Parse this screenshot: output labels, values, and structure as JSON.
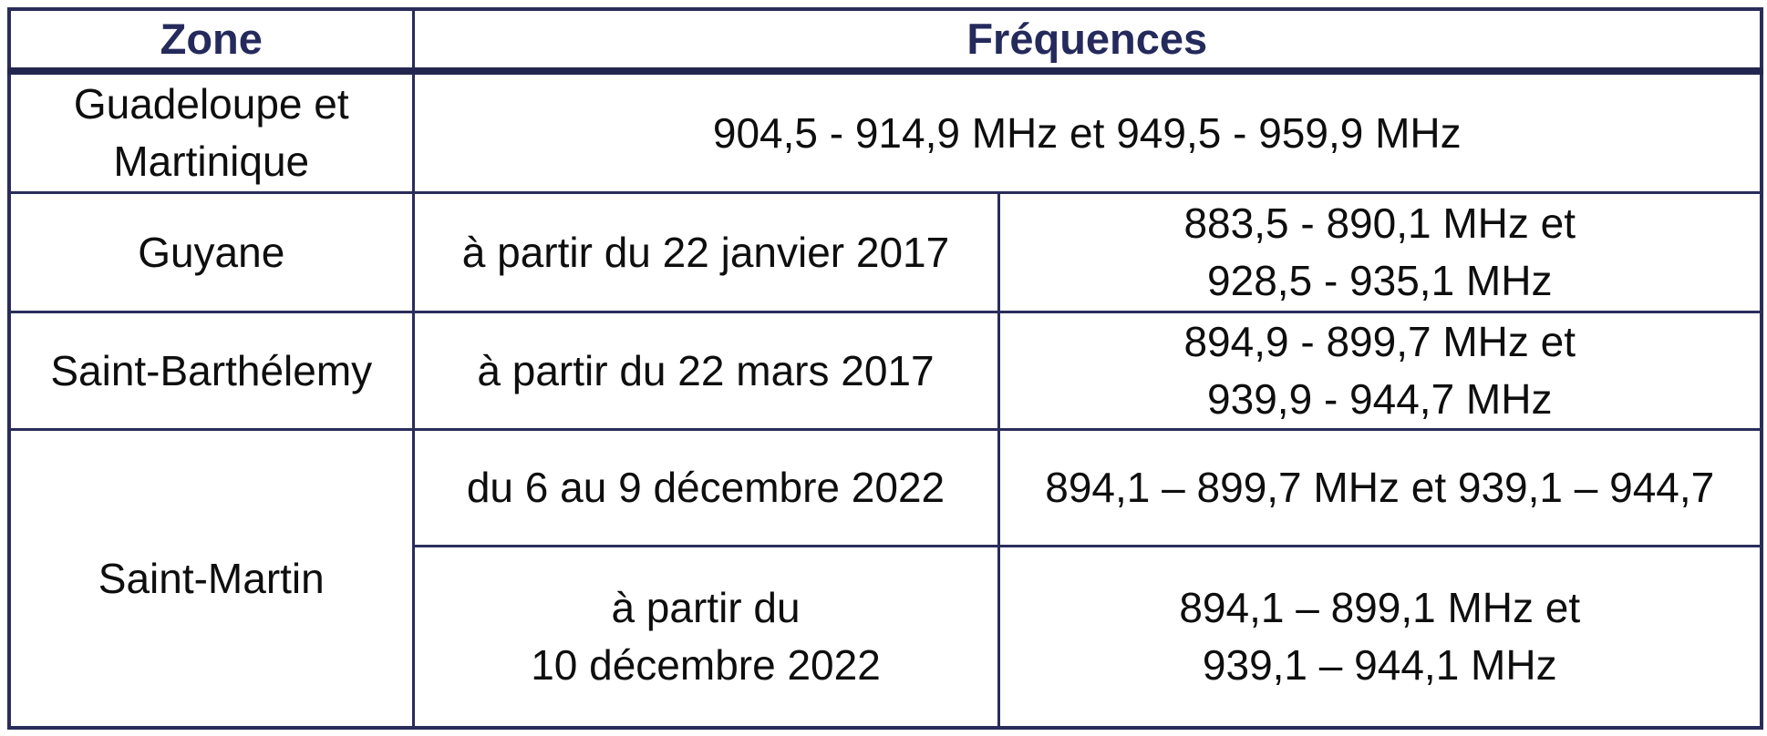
{
  "colors": {
    "border": "#2a2d5a",
    "header_text": "#252a5c",
    "body_text": "#0e0e0e",
    "background": "#ffffff"
  },
  "table": {
    "headers": {
      "zone": "Zone",
      "frequencies": "Fréquences"
    },
    "rows": [
      {
        "zone": "Guadeloupe et\nMartinique",
        "frequencies": "904,5 - 914,9 MHz et 949,5 - 959,9 MHz"
      },
      {
        "zone": "Guyane",
        "period": "à partir du 22 janvier 2017",
        "frequencies": "883,5 - 890,1 MHz et\n928,5 - 935,1 MHz"
      },
      {
        "zone": "Saint-Barthélemy",
        "period": "à partir du 22 mars 2017",
        "frequencies": "894,9 - 899,7 MHz et\n939,9 - 944,7 MHz"
      },
      {
        "zone": "Saint-Martin",
        "sub_rows": [
          {
            "period": "du 6 au 9 décembre 2022",
            "frequencies": "894,1 – 899,7 MHz et 939,1 – 944,7"
          },
          {
            "period": "à partir du\n10 décembre 2022",
            "frequencies": "894,1 – 899,1 MHz et\n939,1 – 944,1 MHz"
          }
        ]
      }
    ]
  }
}
